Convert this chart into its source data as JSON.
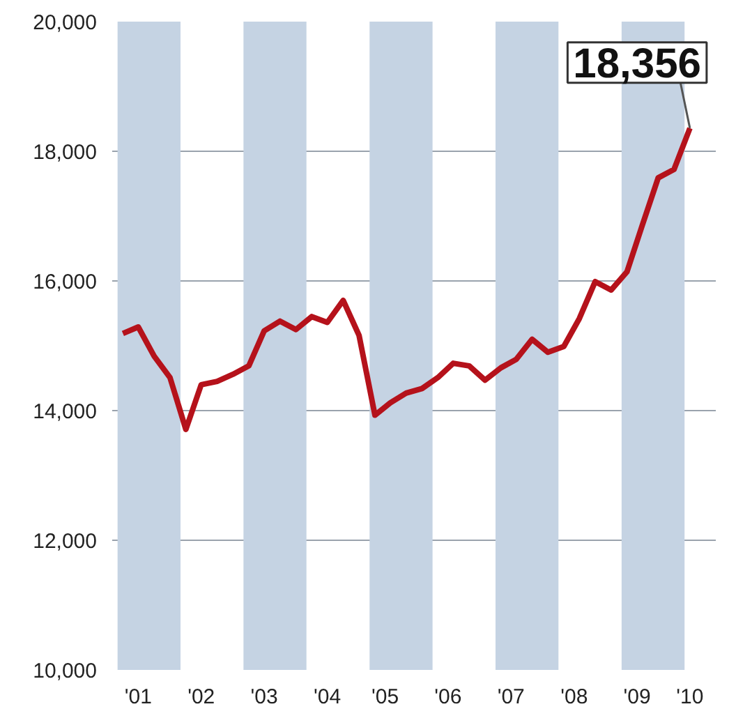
{
  "chart_data": {
    "type": "line",
    "x": [
      "2001-02",
      "2001-05",
      "2001-08",
      "2001-11",
      "2002-02",
      "2002-05",
      "2002-08",
      "2002-11",
      "2003-02",
      "2003-05",
      "2003-08",
      "2003-11",
      "2004-02",
      "2004-05",
      "2004-08",
      "2004-11",
      "2005-02",
      "2005-05",
      "2005-08",
      "2005-11",
      "2006-02",
      "2006-05",
      "2006-08",
      "2006-11",
      "2007-02",
      "2007-05",
      "2007-08",
      "2007-11",
      "2008-02",
      "2008-05",
      "2008-08",
      "2008-11",
      "2009-02",
      "2009-05",
      "2009-08",
      "2009-11",
      "2010-02"
    ],
    "series": [
      {
        "color": "#b5121b",
        "values": [
          15190,
          15290,
          14840,
          14510,
          13710,
          14400,
          14450,
          14560,
          14690,
          15230,
          15380,
          15250,
          15450,
          15360,
          15700,
          15160,
          13930,
          14120,
          14270,
          14340,
          14510,
          14730,
          14690,
          14470,
          14660,
          14790,
          15100,
          14900,
          14990,
          15420,
          15990,
          15860,
          16140,
          16860,
          17590,
          17720,
          18356
        ]
      }
    ],
    "xlim": [
      "2000-12",
      "2010-07"
    ],
    "xticks": [
      {
        "value": "2001-05",
        "label": "'01"
      },
      {
        "value": "2002-05",
        "label": "'02"
      },
      {
        "value": "2003-05",
        "label": "'03"
      },
      {
        "value": "2004-05",
        "label": "'04"
      },
      {
        "value": "2005-04",
        "label": "'05"
      },
      {
        "value": "2006-04",
        "label": "'06"
      },
      {
        "value": "2007-04",
        "label": "'07"
      },
      {
        "value": "2008-04",
        "label": "'08"
      },
      {
        "value": "2009-04",
        "label": "'09"
      },
      {
        "value": "2010-02",
        "label": "'10"
      }
    ],
    "ylim": [
      10000,
      20000
    ],
    "yticks": [
      {
        "value": 10000,
        "label": "10,000"
      },
      {
        "value": 12000,
        "label": "12,000"
      },
      {
        "value": 14000,
        "label": "14,000"
      },
      {
        "value": 16000,
        "label": "16,000"
      },
      {
        "value": 18000,
        "label": "18,000"
      },
      {
        "value": 20000,
        "label": "20,000"
      }
    ],
    "bands": [
      {
        "axis": "x",
        "from": "2001-01",
        "to": "2002-01",
        "color": "#c5d3e3"
      },
      {
        "axis": "x",
        "from": "2003-01",
        "to": "2004-01",
        "color": "#c5d3e3"
      },
      {
        "axis": "x",
        "from": "2005-01",
        "to": "2006-01",
        "color": "#c5d3e3"
      },
      {
        "axis": "x",
        "from": "2007-01",
        "to": "2008-01",
        "color": "#c5d3e3"
      },
      {
        "axis": "x",
        "from": "2009-01",
        "to": "2010-01",
        "color": "#c5d3e3"
      }
    ],
    "annotations": [
      {
        "text": "18,356",
        "x": "2010-02",
        "y": 18356
      }
    ],
    "grid": "y",
    "marker": "none",
    "line_style": "solid"
  }
}
